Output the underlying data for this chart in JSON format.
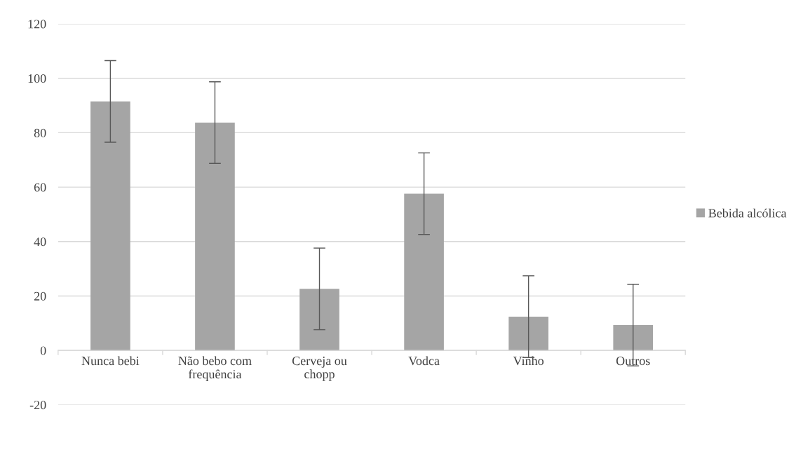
{
  "chart_data": {
    "type": "bar",
    "categories": [
      "Nunca bebi",
      "Não bebo com\nfrequência",
      "Cerveja ou\nchopp",
      "Vodca",
      "Vinho",
      "Outros"
    ],
    "series": [
      {
        "name": "Bebida alcólica",
        "color": "#a5a5a5",
        "values": [
          91.5,
          83.7,
          22.6,
          57.6,
          12.4,
          9.3
        ],
        "errors": [
          15,
          15,
          15,
          15,
          15,
          15
        ]
      }
    ],
    "ylim": [
      -20,
      120
    ],
    "yticks": [
      -20,
      0,
      20,
      40,
      60,
      80,
      100,
      120
    ],
    "grid": "y",
    "legend": "right"
  }
}
